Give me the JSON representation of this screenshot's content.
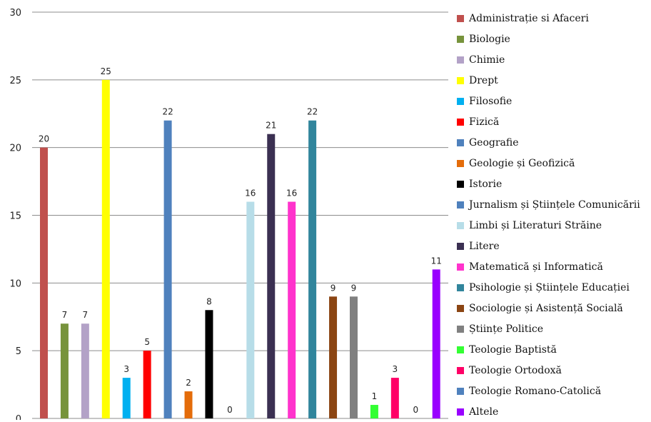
{
  "chart_data": {
    "type": "bar",
    "title": "",
    "xlabel": "",
    "ylabel": "",
    "ylim": [
      0,
      30
    ],
    "yticks": [
      0,
      5,
      10,
      15,
      20,
      25,
      30
    ],
    "grid": true,
    "legend_position": "right",
    "categories": [
      "Administrație si Afaceri",
      "Biologie",
      "Chimie",
      "Drept",
      "Filosofie",
      "Fizică",
      "Geografie",
      "Geologie și Geofizică",
      "Istorie",
      "Jurnalism și Științele Comunicării",
      "Limbi și Literaturi Străine",
      "Litere",
      "Matematică și Informatică",
      "Psihologie și Științele Educației",
      "Sociologie și Asistență Socială",
      "Științe Politice",
      "Teologie Baptistă",
      "Teologie Ortodoxă",
      "Teologie Romano-Catolică",
      "Altele"
    ],
    "values": [
      20,
      7,
      7,
      25,
      3,
      5,
      22,
      2,
      8,
      0,
      16,
      21,
      16,
      22,
      9,
      9,
      1,
      3,
      0,
      11
    ],
    "colors": [
      "#c0504d",
      "#77933c",
      "#b3a2c7",
      "#ffff00",
      "#00b0f0",
      "#ff0000",
      "#4f81bd",
      "#e46c0a",
      "#000000",
      "#4f81bd",
      "#b7dde8",
      "#3b3052",
      "#ff33cc",
      "#31859c",
      "#8b4513",
      "#808080",
      "#33ff33",
      "#ff0066",
      "#4f81bd",
      "#9900ff"
    ]
  }
}
